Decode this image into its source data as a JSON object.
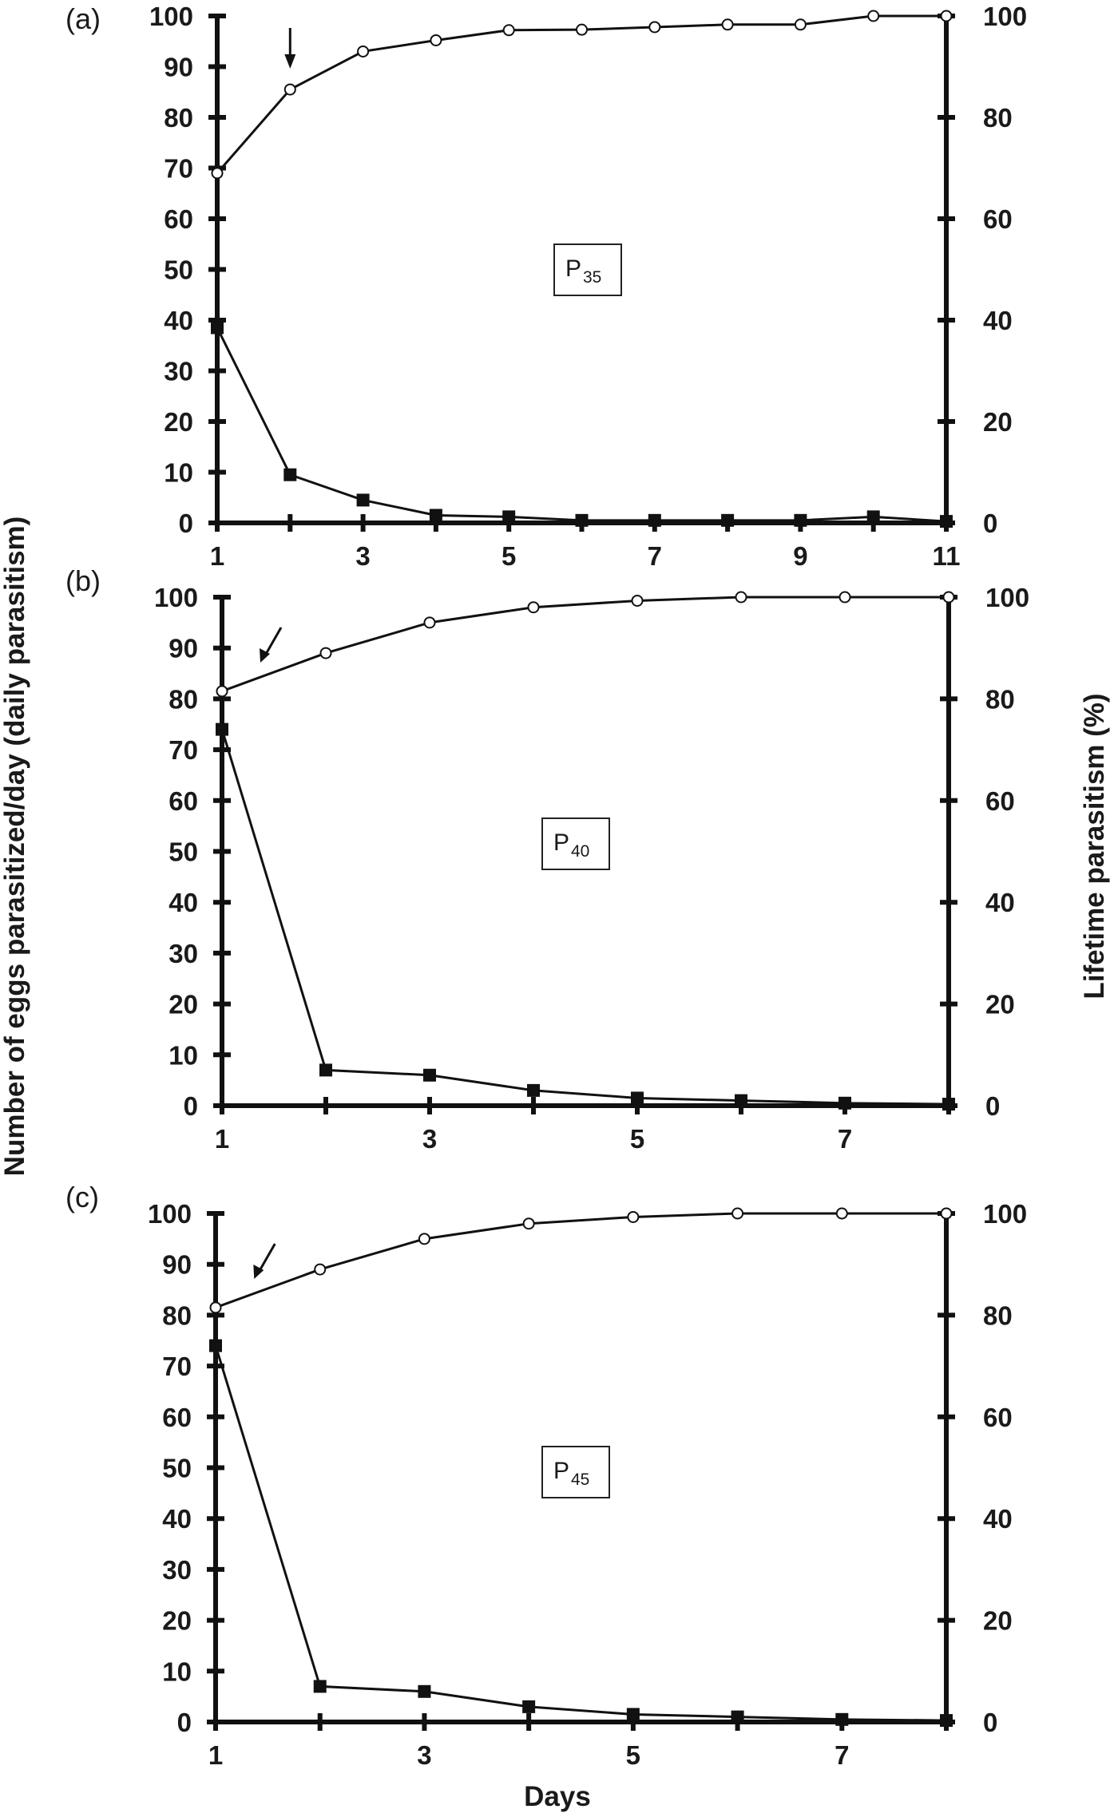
{
  "figure": {
    "y_left_label": "Number of eggs parasitized/day (daily parasitism)",
    "y_right_label": "Lifetime parasitism (%)",
    "x_label": "Days"
  },
  "chart_data": [
    {
      "type": "line",
      "panel": "(a)",
      "box_label": "P",
      "box_subscript": "35",
      "x": [
        1,
        2,
        3,
        4,
        5,
        6,
        7,
        8,
        9,
        10,
        11
      ],
      "xlim": [
        1,
        11
      ],
      "x_ticks": [
        1,
        3,
        5,
        7,
        9,
        11
      ],
      "ylim_left": [
        0,
        100
      ],
      "ylim_right": [
        0,
        100
      ],
      "y_left_ticks": [
        0,
        10,
        20,
        30,
        40,
        50,
        60,
        70,
        80,
        90,
        100
      ],
      "y_right_ticks": [
        0,
        20,
        40,
        60,
        80,
        100
      ],
      "arrow_at_x": 2,
      "series": [
        {
          "marker": "filled-square",
          "axis": "left",
          "values": [
            38.5,
            9.5,
            4.5,
            1.5,
            1.2,
            0.5,
            0.5,
            0.5,
            0.5,
            1.2,
            0.3
          ]
        },
        {
          "marker": "open-circle",
          "axis": "right",
          "values": [
            69,
            85.5,
            93,
            95.2,
            97.2,
            97.3,
            97.8,
            98.3,
            98.3,
            100,
            100
          ]
        }
      ]
    },
    {
      "type": "line",
      "panel": "(b)",
      "box_label": "P",
      "box_subscript": "40",
      "x": [
        1,
        2,
        3,
        4,
        5,
        6,
        7,
        8
      ],
      "xlim": [
        1,
        8
      ],
      "x_ticks": [
        1,
        3,
        5,
        7
      ],
      "ylim_left": [
        0,
        100
      ],
      "ylim_right": [
        0,
        100
      ],
      "y_left_ticks": [
        0,
        10,
        20,
        30,
        40,
        50,
        60,
        70,
        80,
        90,
        100
      ],
      "y_right_ticks": [
        0,
        20,
        40,
        60,
        80,
        100
      ],
      "arrow_at_x": 1.4,
      "series": [
        {
          "marker": "filled-square",
          "axis": "left",
          "values": [
            74,
            7,
            6,
            3,
            1.5,
            1,
            0.5,
            0.3
          ]
        },
        {
          "marker": "open-circle",
          "axis": "right",
          "values": [
            81.5,
            89,
            95,
            98,
            99.3,
            100,
            100,
            100
          ]
        }
      ]
    },
    {
      "type": "line",
      "panel": "(c)",
      "box_label": "P",
      "box_subscript": "45",
      "x": [
        1,
        2,
        3,
        4,
        5,
        6,
        7,
        8
      ],
      "xlim": [
        1,
        8
      ],
      "x_ticks": [
        1,
        3,
        5,
        7
      ],
      "ylim_left": [
        0,
        100
      ],
      "ylim_right": [
        0,
        100
      ],
      "y_left_ticks": [
        0,
        10,
        20,
        30,
        40,
        50,
        60,
        70,
        80,
        90,
        100
      ],
      "y_right_ticks": [
        0,
        20,
        40,
        60,
        80,
        100
      ],
      "arrow_at_x": 1.4,
      "series": [
        {
          "marker": "filled-square",
          "axis": "left",
          "values": [
            74,
            7,
            6,
            3,
            1.5,
            1,
            0.5,
            0.3
          ]
        },
        {
          "marker": "open-circle",
          "axis": "right",
          "values": [
            81.5,
            89,
            95,
            98,
            99.3,
            100,
            100,
            100
          ]
        }
      ]
    }
  ]
}
